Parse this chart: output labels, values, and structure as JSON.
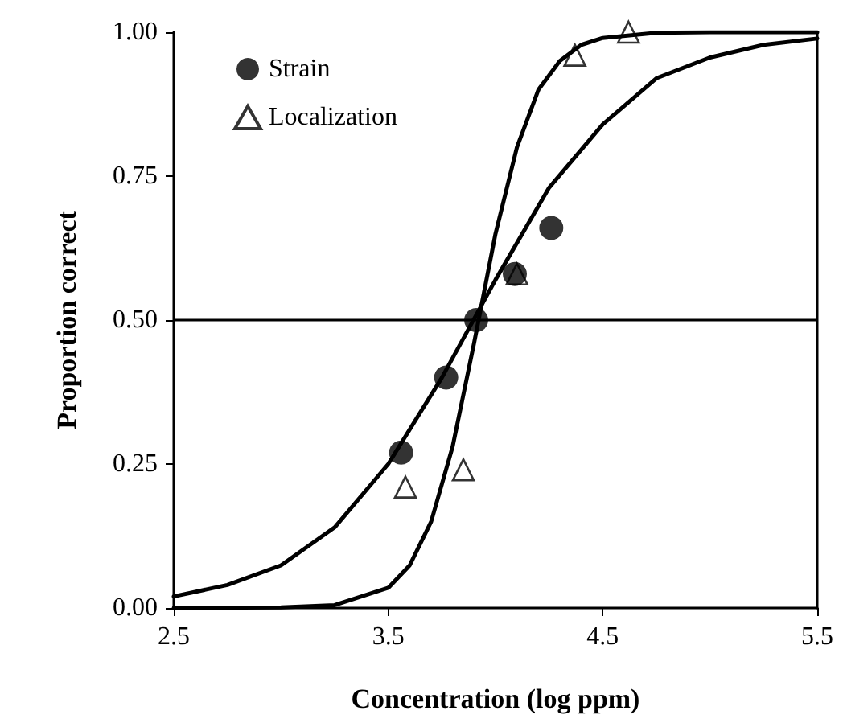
{
  "chart_data": {
    "type": "scatter",
    "xlabel": "Concentration (log ppm)",
    "ylabel": "Proportion correct",
    "xlim": [
      2.5,
      5.5
    ],
    "xticks": [
      2.5,
      3.5,
      4.5,
      5.5
    ],
    "ylim": [
      0,
      1
    ],
    "yticks": [
      {
        "value": 0,
        "label": "0.00"
      },
      {
        "value": 0.25,
        "label": "0.25"
      },
      {
        "value": 0.5,
        "label": "0.50"
      },
      {
        "value": 0.75,
        "label": "0.75"
      },
      {
        "value": 1,
        "label": "1.00"
      }
    ],
    "grid": false,
    "legend": "top left",
    "ref_lines": [
      {
        "axis": "y",
        "value": 0.5,
        "color": "#000000"
      }
    ],
    "series": [
      {
        "name": "Strain",
        "color": "#000000",
        "marker": "circle",
        "x": [
          3.56,
          3.77,
          3.91,
          4.09,
          4.26
        ],
        "values": [
          0.27,
          0.4,
          0.5,
          0.58,
          0.66
        ]
      },
      {
        "name": "Localization",
        "color": "#000000",
        "marker": "triangle",
        "x": [
          3.58,
          3.85,
          4.1,
          4.37,
          4.62
        ],
        "values": [
          0.21,
          0.24,
          0.58,
          0.96,
          1.0
        ]
      },
      {
        "type": "line",
        "color": "#000000",
        "marker": "none",
        "x": [
          2.5,
          2.75,
          3.0,
          3.25,
          3.5,
          3.75,
          4.0,
          4.25,
          4.5,
          4.75,
          5.0,
          5.25,
          5.5
        ],
        "values": [
          0.02,
          0.04,
          0.074,
          0.14,
          0.25,
          0.4,
          0.57,
          0.73,
          0.84,
          0.92,
          0.956,
          0.978,
          0.989
        ]
      },
      {
        "type": "line",
        "color": "#000000",
        "marker": "none",
        "x": [
          2.5,
          3.0,
          3.25,
          3.5,
          3.6,
          3.7,
          3.8,
          3.9,
          4.0,
          4.1,
          4.2,
          4.3,
          4.4,
          4.5,
          4.75,
          5.0,
          5.5
        ],
        "values": [
          0,
          0.001,
          0.005,
          0.035,
          0.074,
          0.15,
          0.28,
          0.46,
          0.65,
          0.8,
          0.9,
          0.95,
          0.978,
          0.99,
          0.999,
          1.0,
          1.0
        ]
      }
    ]
  }
}
